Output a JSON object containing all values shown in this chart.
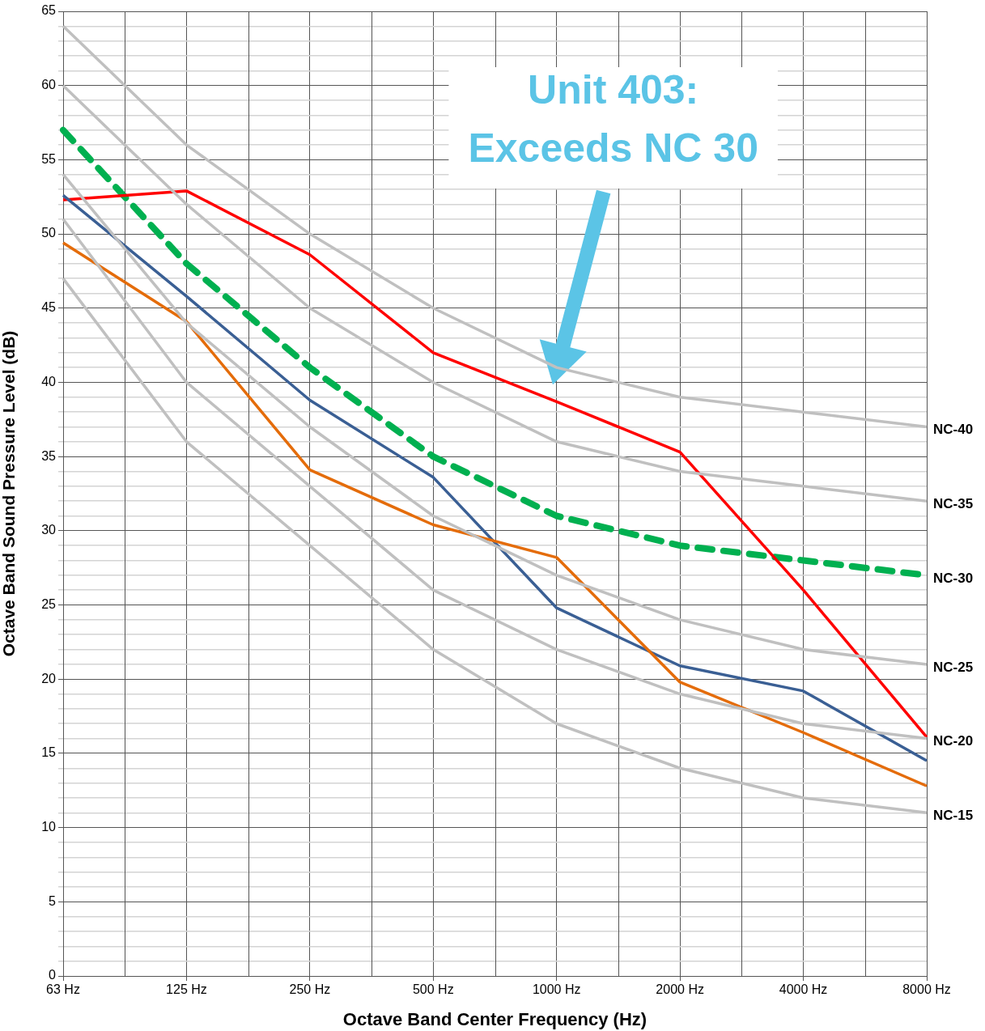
{
  "chart_data": {
    "type": "line",
    "xlabel": "Octave Band Center Frequency (Hz)",
    "ylabel": "Octave Band Sound Pressure Level (dB)",
    "categories": [
      "63 Hz",
      "125 Hz",
      "250 Hz",
      "500 Hz",
      "1000 Hz",
      "2000 Hz",
      "4000 Hz",
      "8000 Hz"
    ],
    "series": [
      {
        "name": "NC-40",
        "color": "#c0c0c0",
        "values": [
          64,
          56,
          50,
          45,
          41,
          39,
          38,
          37
        ]
      },
      {
        "name": "NC-35",
        "color": "#c0c0c0",
        "values": [
          60,
          52,
          45,
          40,
          36,
          34,
          33,
          32
        ]
      },
      {
        "name": "NC-25",
        "color": "#c0c0c0",
        "values": [
          54,
          44,
          37,
          31,
          27,
          24,
          22,
          21
        ]
      },
      {
        "name": "NC-20",
        "color": "#c0c0c0",
        "values": [
          51,
          40,
          33,
          26,
          22,
          19,
          17,
          16
        ]
      },
      {
        "name": "NC-15",
        "color": "#c0c0c0",
        "values": [
          47,
          36,
          29,
          22,
          17,
          14,
          12,
          11
        ]
      },
      {
        "color": "#e46c0a",
        "values": [
          49.4,
          44.1,
          34.1,
          30.4,
          28.2,
          19.8,
          16.4,
          12.8
        ]
      },
      {
        "color": "#3a5f94",
        "values": [
          52.6,
          45.8,
          38.8,
          33.6,
          24.8,
          20.9,
          19.2,
          14.5
        ]
      },
      {
        "color": "#ff0000",
        "values": [
          52.3,
          52.9,
          48.6,
          42.0,
          38.7,
          35.3,
          26.0,
          16.1
        ]
      },
      {
        "name": "NC-30",
        "color": "#00b050",
        "line_style": "dashed",
        "values": [
          57,
          48,
          41,
          35,
          31,
          29,
          28,
          27
        ]
      }
    ],
    "ylim": [
      0,
      65
    ],
    "yticks": [
      0,
      {
        "value": 1,
        "label": null
      },
      {
        "value": 2,
        "label": null
      },
      {
        "value": 3,
        "label": null
      },
      {
        "value": 4,
        "label": null
      },
      5,
      {
        "value": 6,
        "label": null
      },
      {
        "value": 7,
        "label": null
      },
      {
        "value": 8,
        "label": null
      },
      {
        "value": 9,
        "label": null
      },
      10,
      {
        "value": 11,
        "label": null
      },
      {
        "value": 12,
        "label": null
      },
      {
        "value": 13,
        "label": null
      },
      {
        "value": 14,
        "label": null
      },
      15,
      {
        "value": 16,
        "label": null
      },
      {
        "value": 17,
        "label": null
      },
      {
        "value": 18,
        "label": null
      },
      {
        "value": 19,
        "label": null
      },
      20,
      {
        "value": 21,
        "label": null
      },
      {
        "value": 22,
        "label": null
      },
      {
        "value": 23,
        "label": null
      },
      {
        "value": 24,
        "label": null
      },
      25,
      {
        "value": 26,
        "label": null
      },
      {
        "value": 27,
        "label": null
      },
      {
        "value": 28,
        "label": null
      },
      {
        "value": 29,
        "label": null
      },
      30,
      {
        "value": 31,
        "label": null
      },
      {
        "value": 32,
        "label": null
      },
      {
        "value": 33,
        "label": null
      },
      {
        "value": 34,
        "label": null
      },
      35,
      {
        "value": 36,
        "label": null
      },
      {
        "value": 37,
        "label": null
      },
      {
        "value": 38,
        "label": null
      },
      {
        "value": 39,
        "label": null
      },
      40,
      {
        "value": 41,
        "label": null
      },
      {
        "value": 42,
        "label": null
      },
      {
        "value": 43,
        "label": null
      },
      {
        "value": 44,
        "label": null
      },
      45,
      {
        "value": 46,
        "label": null
      },
      {
        "value": 47,
        "label": null
      },
      {
        "value": 48,
        "label": null
      },
      {
        "value": 49,
        "label": null
      },
      50,
      {
        "value": 51,
        "label": null
      },
      {
        "value": 52,
        "label": null
      },
      {
        "value": 53,
        "label": null
      },
      {
        "value": 54,
        "label": null
      },
      55,
      {
        "value": 56,
        "label": null
      },
      {
        "value": 57,
        "label": null
      },
      {
        "value": 58,
        "label": null
      },
      {
        "value": 59,
        "label": null
      },
      60,
      {
        "value": 61,
        "label": null
      },
      {
        "value": 62,
        "label": null
      },
      {
        "value": 63,
        "label": null
      },
      {
        "value": 64,
        "label": null
      },
      65
    ],
    "grid": true,
    "legend": false,
    "marker": "none",
    "annotations": [
      "Unit 403:\nExceeds NC 30"
    ]
  }
}
